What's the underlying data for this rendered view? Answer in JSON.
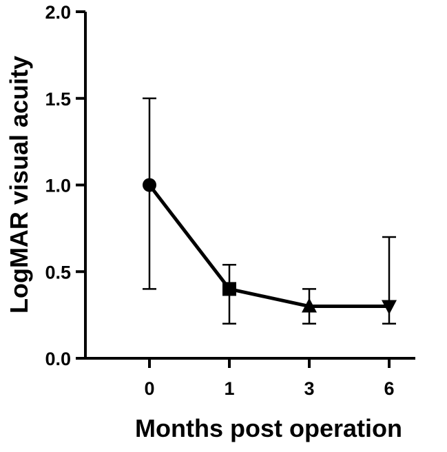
{
  "chart_data": {
    "type": "line",
    "title": "",
    "xlabel": "Months post operation",
    "ylabel": "LogMAR visual acuity",
    "x_categories": [
      "0",
      "1",
      "3",
      "6"
    ],
    "y_ticks": [
      "0.0",
      "0.5",
      "1.0",
      "1.5",
      "2.0"
    ],
    "ylim": [
      0,
      2
    ],
    "grid": false,
    "legend": "none",
    "series": [
      {
        "values": [
          1.0,
          0.4,
          0.3,
          0.3
        ],
        "error_low": [
          0.4,
          0.2,
          0.2,
          0.2
        ],
        "error_high": [
          1.5,
          0.54,
          0.4,
          0.7
        ],
        "markers": [
          "circle",
          "square",
          "triangle-up",
          "triangle-down"
        ],
        "color": "#000000"
      }
    ]
  }
}
